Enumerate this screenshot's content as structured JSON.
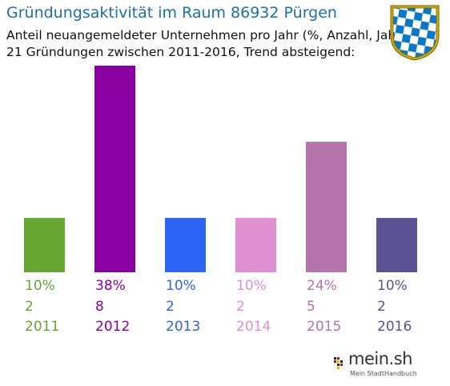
{
  "header": {
    "title": "Gründungsaktivität im Raum 86932 Pürgen",
    "subtitle": "Anteil neuangemeldeter Unternehmen pro Jahr (%, Anzahl, Jahr)",
    "summary": "21 Gründungen zwischen 2011-2016, Trend absteigend:"
  },
  "crest": {
    "icon": "bavaria-coat-of-arms-icon",
    "colors": [
      "#0a77c8",
      "#ffffff",
      "#d4aa00"
    ]
  },
  "chart_data": {
    "type": "bar",
    "categories": [
      "2011",
      "2012",
      "2013",
      "2014",
      "2015",
      "2016"
    ],
    "values": [
      10,
      38,
      10,
      10,
      24,
      10
    ],
    "percent_labels": [
      "10%",
      "38%",
      "10%",
      "10%",
      "24%",
      "10%"
    ],
    "counts": [
      2,
      8,
      2,
      2,
      5,
      2
    ],
    "colors": [
      "#66a532",
      "#8b00a0",
      "#2e64f3",
      "#de90d0",
      "#b674ad",
      "#5b5394"
    ],
    "ylim": [
      0,
      38
    ]
  },
  "logo": {
    "text": "mein.sh",
    "tagline": "Mein StadtHandbuch"
  }
}
